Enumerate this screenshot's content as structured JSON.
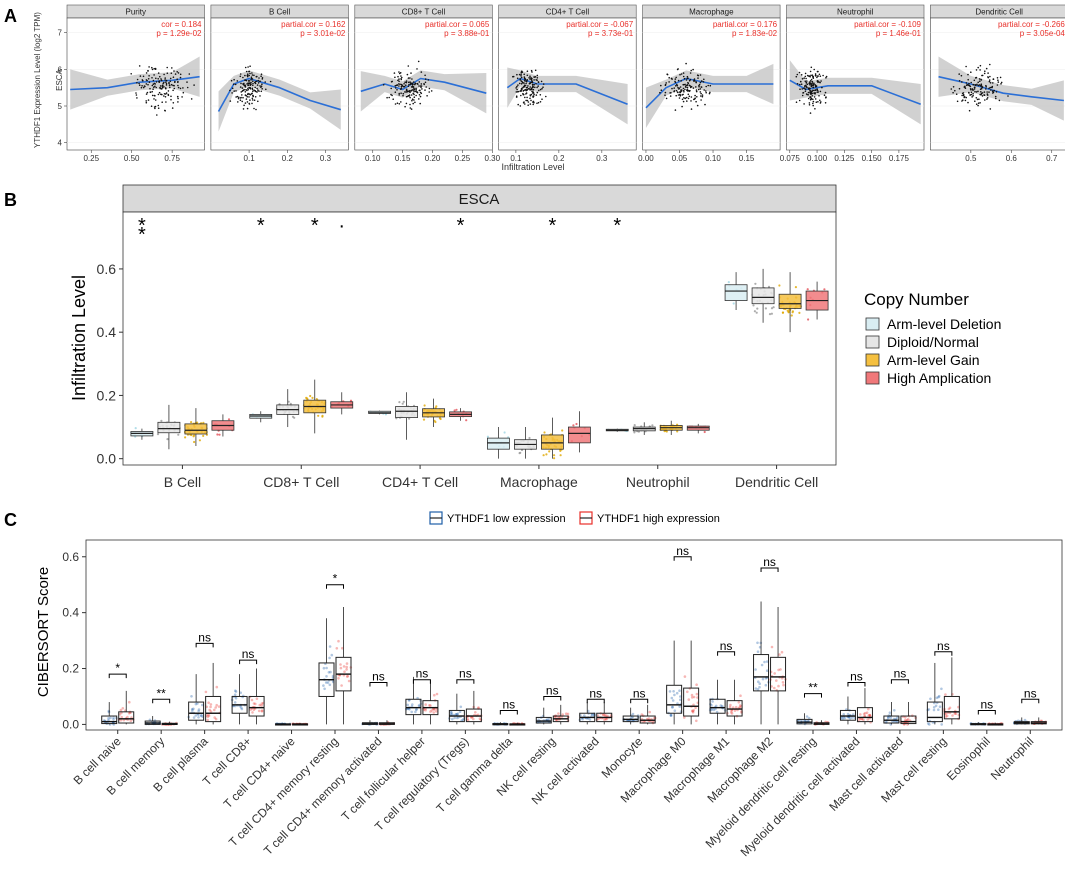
{
  "panels": {
    "a": "A",
    "b": "B",
    "c": "C"
  },
  "colors": {
    "strip": "#d9d9d9",
    "panel_bg_b": "#ffffff",
    "smooth": "#2b6fd6",
    "ci": "#bdbdbd",
    "stat_text": "#e8302a",
    "cn_deletion": "#d9edf2",
    "cn_diploid": "#e6e6e6",
    "cn_gain": "#f5c040",
    "cn_amp": "#f0787a",
    "low_expr": "#1f5fa8",
    "high_expr": "#e8302a"
  },
  "chart_data": [
    {
      "id": "A",
      "type": "scatter",
      "ylabel": "YTHDF1 Expression Level (log2 TPM)",
      "xlabel": "Infiltration Level",
      "row_label": "ESCA",
      "y_ticks": [
        "4",
        "5",
        "6",
        "7"
      ],
      "ylim": [
        3.8,
        7.4
      ],
      "facets": [
        {
          "title": "Purity",
          "stat1": "cor = 0.184",
          "stat2": "p = 1.29e-02",
          "xlim": [
            0.1,
            0.95
          ],
          "ticks": [
            0.25,
            0.5,
            0.75
          ],
          "tick_labels": [
            "0.25",
            "0.50",
            "0.75"
          ],
          "center": 0.68,
          "spread": 0.14,
          "trend": [
            [
              0.12,
              5.45
            ],
            [
              0.35,
              5.5
            ],
            [
              0.55,
              5.65
            ],
            [
              0.75,
              5.7
            ],
            [
              0.92,
              5.8
            ]
          ]
        },
        {
          "title": "B Cell",
          "stat1": "partial.cor = 0.162",
          "stat2": "p = 3.01e-02",
          "xlim": [
            0.0,
            0.36
          ],
          "ticks": [
            0.1,
            0.2,
            0.3
          ],
          "tick_labels": [
            "0.1",
            "0.2",
            "0.3"
          ],
          "center": 0.1,
          "spread": 0.04,
          "trend": [
            [
              0.02,
              4.85
            ],
            [
              0.06,
              5.6
            ],
            [
              0.1,
              5.75
            ],
            [
              0.18,
              5.5
            ],
            [
              0.26,
              5.15
            ],
            [
              0.34,
              4.9
            ]
          ]
        },
        {
          "title": "CD8+ T Cell",
          "stat1": "partial.cor = 0.065",
          "stat2": "p = 3.88e-01",
          "xlim": [
            0.07,
            0.3
          ],
          "ticks": [
            0.1,
            0.15,
            0.2,
            0.25,
            0.3
          ],
          "tick_labels": [
            "0.10",
            "0.15",
            "0.20",
            "0.25",
            "0.30"
          ],
          "center": 0.16,
          "spread": 0.03,
          "trend": [
            [
              0.08,
              5.4
            ],
            [
              0.12,
              5.6
            ],
            [
              0.15,
              5.45
            ],
            [
              0.18,
              5.75
            ],
            [
              0.22,
              5.65
            ],
            [
              0.29,
              5.35
            ]
          ]
        },
        {
          "title": "CD4+ T Cell",
          "stat1": "partial.cor = -0.067",
          "stat2": "p = 3.73e-01",
          "xlim": [
            0.06,
            0.38
          ],
          "ticks": [
            0.1,
            0.2,
            0.3
          ],
          "tick_labels": [
            "0.1",
            "0.2",
            "0.3"
          ],
          "center": 0.13,
          "spread": 0.03,
          "trend": [
            [
              0.08,
              5.5
            ],
            [
              0.11,
              5.75
            ],
            [
              0.15,
              5.6
            ],
            [
              0.24,
              5.6
            ],
            [
              0.36,
              5.05
            ]
          ]
        },
        {
          "title": "Macrophage",
          "stat1": "partial.cor = 0.176",
          "stat2": "p = 1.83e-02",
          "xlim": [
            -0.005,
            0.2
          ],
          "ticks": [
            0.0,
            0.05,
            0.1,
            0.15
          ],
          "tick_labels": [
            "0.00",
            "0.05",
            "0.10",
            "0.15"
          ],
          "center": 0.06,
          "spread": 0.035,
          "trend": [
            [
              0.0,
              4.95
            ],
            [
              0.03,
              5.5
            ],
            [
              0.06,
              5.75
            ],
            [
              0.1,
              5.6
            ],
            [
              0.15,
              5.6
            ],
            [
              0.19,
              5.6
            ]
          ]
        },
        {
          "title": "Neutrophil",
          "stat1": "partial.cor = -0.109",
          "stat2": "p = 1.46e-01",
          "xlim": [
            0.072,
            0.198
          ],
          "ticks": [
            0.075,
            0.1,
            0.125,
            0.15,
            0.175
          ],
          "tick_labels": [
            "0.075",
            "0.100",
            "0.125",
            "0.150",
            "0.175"
          ],
          "center": 0.095,
          "spread": 0.012,
          "trend": [
            [
              0.075,
              5.7
            ],
            [
              0.09,
              5.45
            ],
            [
              0.11,
              5.55
            ],
            [
              0.15,
              5.55
            ],
            [
              0.195,
              5.05
            ]
          ]
        },
        {
          "title": "Dendritic Cell",
          "stat1": "partial.cor = -0.266",
          "stat2": "p = 3.05e-04",
          "xlim": [
            0.4,
            0.74
          ],
          "ticks": [
            0.5,
            0.6,
            0.7
          ],
          "tick_labels": [
            "0.5",
            "0.6",
            "0.7"
          ],
          "center": 0.52,
          "spread": 0.06,
          "trend": [
            [
              0.42,
              5.8
            ],
            [
              0.5,
              5.6
            ],
            [
              0.58,
              5.35
            ],
            [
              0.65,
              5.25
            ],
            [
              0.73,
              5.15
            ]
          ]
        }
      ]
    },
    {
      "id": "B",
      "type": "boxplot",
      "strip_title": "ESCA",
      "ylabel": "Infiltration Level",
      "ylim": [
        -0.02,
        0.78
      ],
      "y_ticks": [
        0.0,
        0.2,
        0.4,
        0.6
      ],
      "y_tick_labels": [
        "0.0",
        "0.2",
        "0.4",
        "0.6"
      ],
      "categories": [
        "B Cell",
        "CD8+ T Cell",
        "CD4+ T Cell",
        "Macrophage",
        "Neutrophil",
        "Dendritic Cell"
      ],
      "legend_title": "Copy Number",
      "legend_position": "right",
      "series": [
        {
          "name": "Arm-level Deletion",
          "boxes": [
            [
              0.06,
              0.072,
              0.08,
              0.086,
              0.095
            ],
            [
              0.115,
              0.128,
              0.135,
              0.14,
              0.15
            ],
            [
              0.14,
              0.143,
              0.145,
              0.15,
              0.152
            ],
            [
              0.0,
              0.03,
              0.05,
              0.065,
              0.1
            ],
            [
              0.085,
              0.088,
              0.09,
              0.093,
              0.095
            ],
            [
              0.47,
              0.5,
              0.53,
              0.55,
              0.59
            ]
          ]
        },
        {
          "name": "Diploid/Normal",
          "boxes": [
            [
              0.03,
              0.082,
              0.095,
              0.115,
              0.17
            ],
            [
              0.1,
              0.14,
              0.155,
              0.17,
              0.22
            ],
            [
              0.06,
              0.13,
              0.15,
              0.165,
              0.21
            ],
            [
              0.0,
              0.03,
              0.045,
              0.06,
              0.1
            ],
            [
              0.075,
              0.088,
              0.095,
              0.1,
              0.115
            ],
            [
              0.43,
              0.49,
              0.51,
              0.54,
              0.6
            ]
          ]
        },
        {
          "name": "Arm-level Gain",
          "boxes": [
            [
              0.04,
              0.078,
              0.09,
              0.11,
              0.16
            ],
            [
              0.08,
              0.145,
              0.165,
              0.185,
              0.25
            ],
            [
              0.1,
              0.132,
              0.145,
              0.158,
              0.19
            ],
            [
              0.0,
              0.03,
              0.05,
              0.075,
              0.13
            ],
            [
              0.075,
              0.09,
              0.098,
              0.105,
              0.12
            ],
            [
              0.4,
              0.475,
              0.49,
              0.52,
              0.59
            ]
          ]
        },
        {
          "name": "High Amplication",
          "boxes": [
            [
              0.07,
              0.09,
              0.105,
              0.12,
              0.14
            ],
            [
              0.14,
              0.16,
              0.17,
              0.18,
              0.21
            ],
            [
              0.12,
              0.133,
              0.14,
              0.148,
              0.16
            ],
            [
              0.02,
              0.05,
              0.08,
              0.1,
              0.15
            ],
            [
              0.08,
              0.09,
              0.098,
              0.103,
              0.11
            ],
            [
              0.44,
              0.47,
              0.5,
              0.53,
              0.56
            ]
          ]
        }
      ],
      "sig_marks": [
        {
          "category": 0,
          "offset": -1.5,
          "text": "*",
          "level": 0
        },
        {
          "category": 0,
          "offset": -1.5,
          "text": "*",
          "level": 1
        },
        {
          "category": 1,
          "offset": -1.5,
          "text": "*",
          "level": 0
        },
        {
          "category": 1,
          "offset": 0.5,
          "text": "*",
          "level": 0
        },
        {
          "category": 1,
          "offset": 1.5,
          "text": "·",
          "level": 0
        },
        {
          "category": 2,
          "offset": 1.5,
          "text": "*",
          "level": 0
        },
        {
          "category": 3,
          "offset": 0.5,
          "text": "*",
          "level": 0
        },
        {
          "category": 4,
          "offset": -1.5,
          "text": "*",
          "level": 0
        }
      ]
    },
    {
      "id": "C",
      "type": "boxplot",
      "ylabel": "CIBERSORT Score",
      "ylim": [
        -0.02,
        0.66
      ],
      "y_ticks": [
        0.0,
        0.2,
        0.4,
        0.6
      ],
      "y_tick_labels": [
        "0.0",
        "0.2",
        "0.4",
        "0.6"
      ],
      "legend_position": "top",
      "legend": [
        "YTHDF1 low expression",
        "YTHDF1 high expression"
      ],
      "categories": [
        "B cell naive",
        "B cell memory",
        "B cell plasma",
        "T cell CD8+",
        "T cell CD4+ naive",
        "T cell CD4+ memory resting",
        "T cell CD4+ memory activated",
        "T cell follicular helper",
        "T cell regulatory (Tregs)",
        "T cell gamma delta",
        "NK cell resting",
        "NK cell activated",
        "Monocyte",
        "Macrophage M0",
        "Macrophage M1",
        "Macrophage M2",
        "Myeloid dendritic cell resting",
        "Myeloid dendritic cell activated",
        "Mast cell activated",
        "Mast cell resting",
        "Eosinophil",
        "Neutrophil"
      ],
      "significance": [
        "*",
        "**",
        "ns",
        "ns",
        "",
        "*",
        "ns",
        "ns",
        "ns",
        "ns",
        "ns",
        "ns",
        "ns",
        "ns",
        "ns",
        "ns",
        "**",
        "ns",
        "ns",
        "ns",
        "ns",
        "ns"
      ],
      "sig_y": [
        0.18,
        0.09,
        0.29,
        0.23,
        0,
        0.5,
        0.15,
        0.16,
        0.16,
        0.05,
        0.1,
        0.09,
        0.09,
        0.6,
        0.26,
        0.56,
        0.11,
        0.15,
        0.16,
        0.26,
        0.05,
        0.09
      ],
      "series": [
        {
          "name": "YTHDF1 low expression",
          "boxes": [
            [
              0,
              0.003,
              0.01,
              0.03,
              0.08
            ],
            [
              0,
              0.0,
              0.005,
              0.012,
              0.03
            ],
            [
              0,
              0.015,
              0.04,
              0.08,
              0.18
            ],
            [
              0,
              0.04,
              0.07,
              0.1,
              0.18
            ],
            [
              0,
              0,
              0.001,
              0.002,
              0.005
            ],
            [
              0,
              0.1,
              0.16,
              0.22,
              0.38
            ],
            [
              0,
              0,
              0.002,
              0.006,
              0.015
            ],
            [
              0,
              0.035,
              0.06,
              0.09,
              0.17
            ],
            [
              0,
              0.01,
              0.03,
              0.05,
              0.11
            ],
            [
              0,
              0,
              0.001,
              0.003,
              0.008
            ],
            [
              0,
              0.005,
              0.012,
              0.025,
              0.06
            ],
            [
              0,
              0.01,
              0.025,
              0.04,
              0.08
            ],
            [
              0,
              0.01,
              0.018,
              0.03,
              0.06
            ],
            [
              0,
              0.04,
              0.07,
              0.14,
              0.3
            ],
            [
              0,
              0.04,
              0.06,
              0.09,
              0.16
            ],
            [
              0,
              0.12,
              0.17,
              0.25,
              0.44
            ],
            [
              0,
              0.002,
              0.008,
              0.018,
              0.04
            ],
            [
              0,
              0.015,
              0.03,
              0.05,
              0.1
            ],
            [
              0,
              0.005,
              0.015,
              0.03,
              0.08
            ],
            [
              0,
              0.01,
              0.025,
              0.08,
              0.22
            ],
            [
              0,
              0,
              0.001,
              0.003,
              0.008
            ],
            [
              0,
              0.002,
              0.006,
              0.01,
              0.025
            ]
          ]
        },
        {
          "name": "YTHDF1 high expression",
          "boxes": [
            [
              0,
              0.005,
              0.02,
              0.045,
              0.12
            ],
            [
              0,
              0,
              0.001,
              0.004,
              0.01
            ],
            [
              0,
              0.01,
              0.04,
              0.1,
              0.22
            ],
            [
              0,
              0.03,
              0.06,
              0.1,
              0.2
            ],
            [
              0,
              0,
              0.001,
              0.002,
              0.005
            ],
            [
              0,
              0.12,
              0.18,
              0.24,
              0.42
            ],
            [
              0,
              0,
              0.002,
              0.006,
              0.015
            ],
            [
              0,
              0.035,
              0.06,
              0.085,
              0.16
            ],
            [
              0,
              0.01,
              0.03,
              0.055,
              0.12
            ],
            [
              0,
              0,
              0.001,
              0.002,
              0.006
            ],
            [
              0,
              0.01,
              0.02,
              0.03,
              0.07
            ],
            [
              0,
              0.01,
              0.025,
              0.04,
              0.08
            ],
            [
              0,
              0.005,
              0.015,
              0.03,
              0.07
            ],
            [
              0,
              0.03,
              0.065,
              0.13,
              0.3
            ],
            [
              0,
              0.03,
              0.055,
              0.085,
              0.16
            ],
            [
              0,
              0.12,
              0.17,
              0.24,
              0.42
            ],
            [
              0,
              0,
              0.002,
              0.006,
              0.015
            ],
            [
              0,
              0.01,
              0.025,
              0.06,
              0.13
            ],
            [
              0,
              0.003,
              0.01,
              0.03,
              0.08
            ],
            [
              0,
              0.02,
              0.045,
              0.1,
              0.24
            ],
            [
              0,
              0,
              0.001,
              0.002,
              0.006
            ],
            [
              0,
              0.002,
              0.005,
              0.01,
              0.025
            ]
          ]
        }
      ]
    }
  ]
}
